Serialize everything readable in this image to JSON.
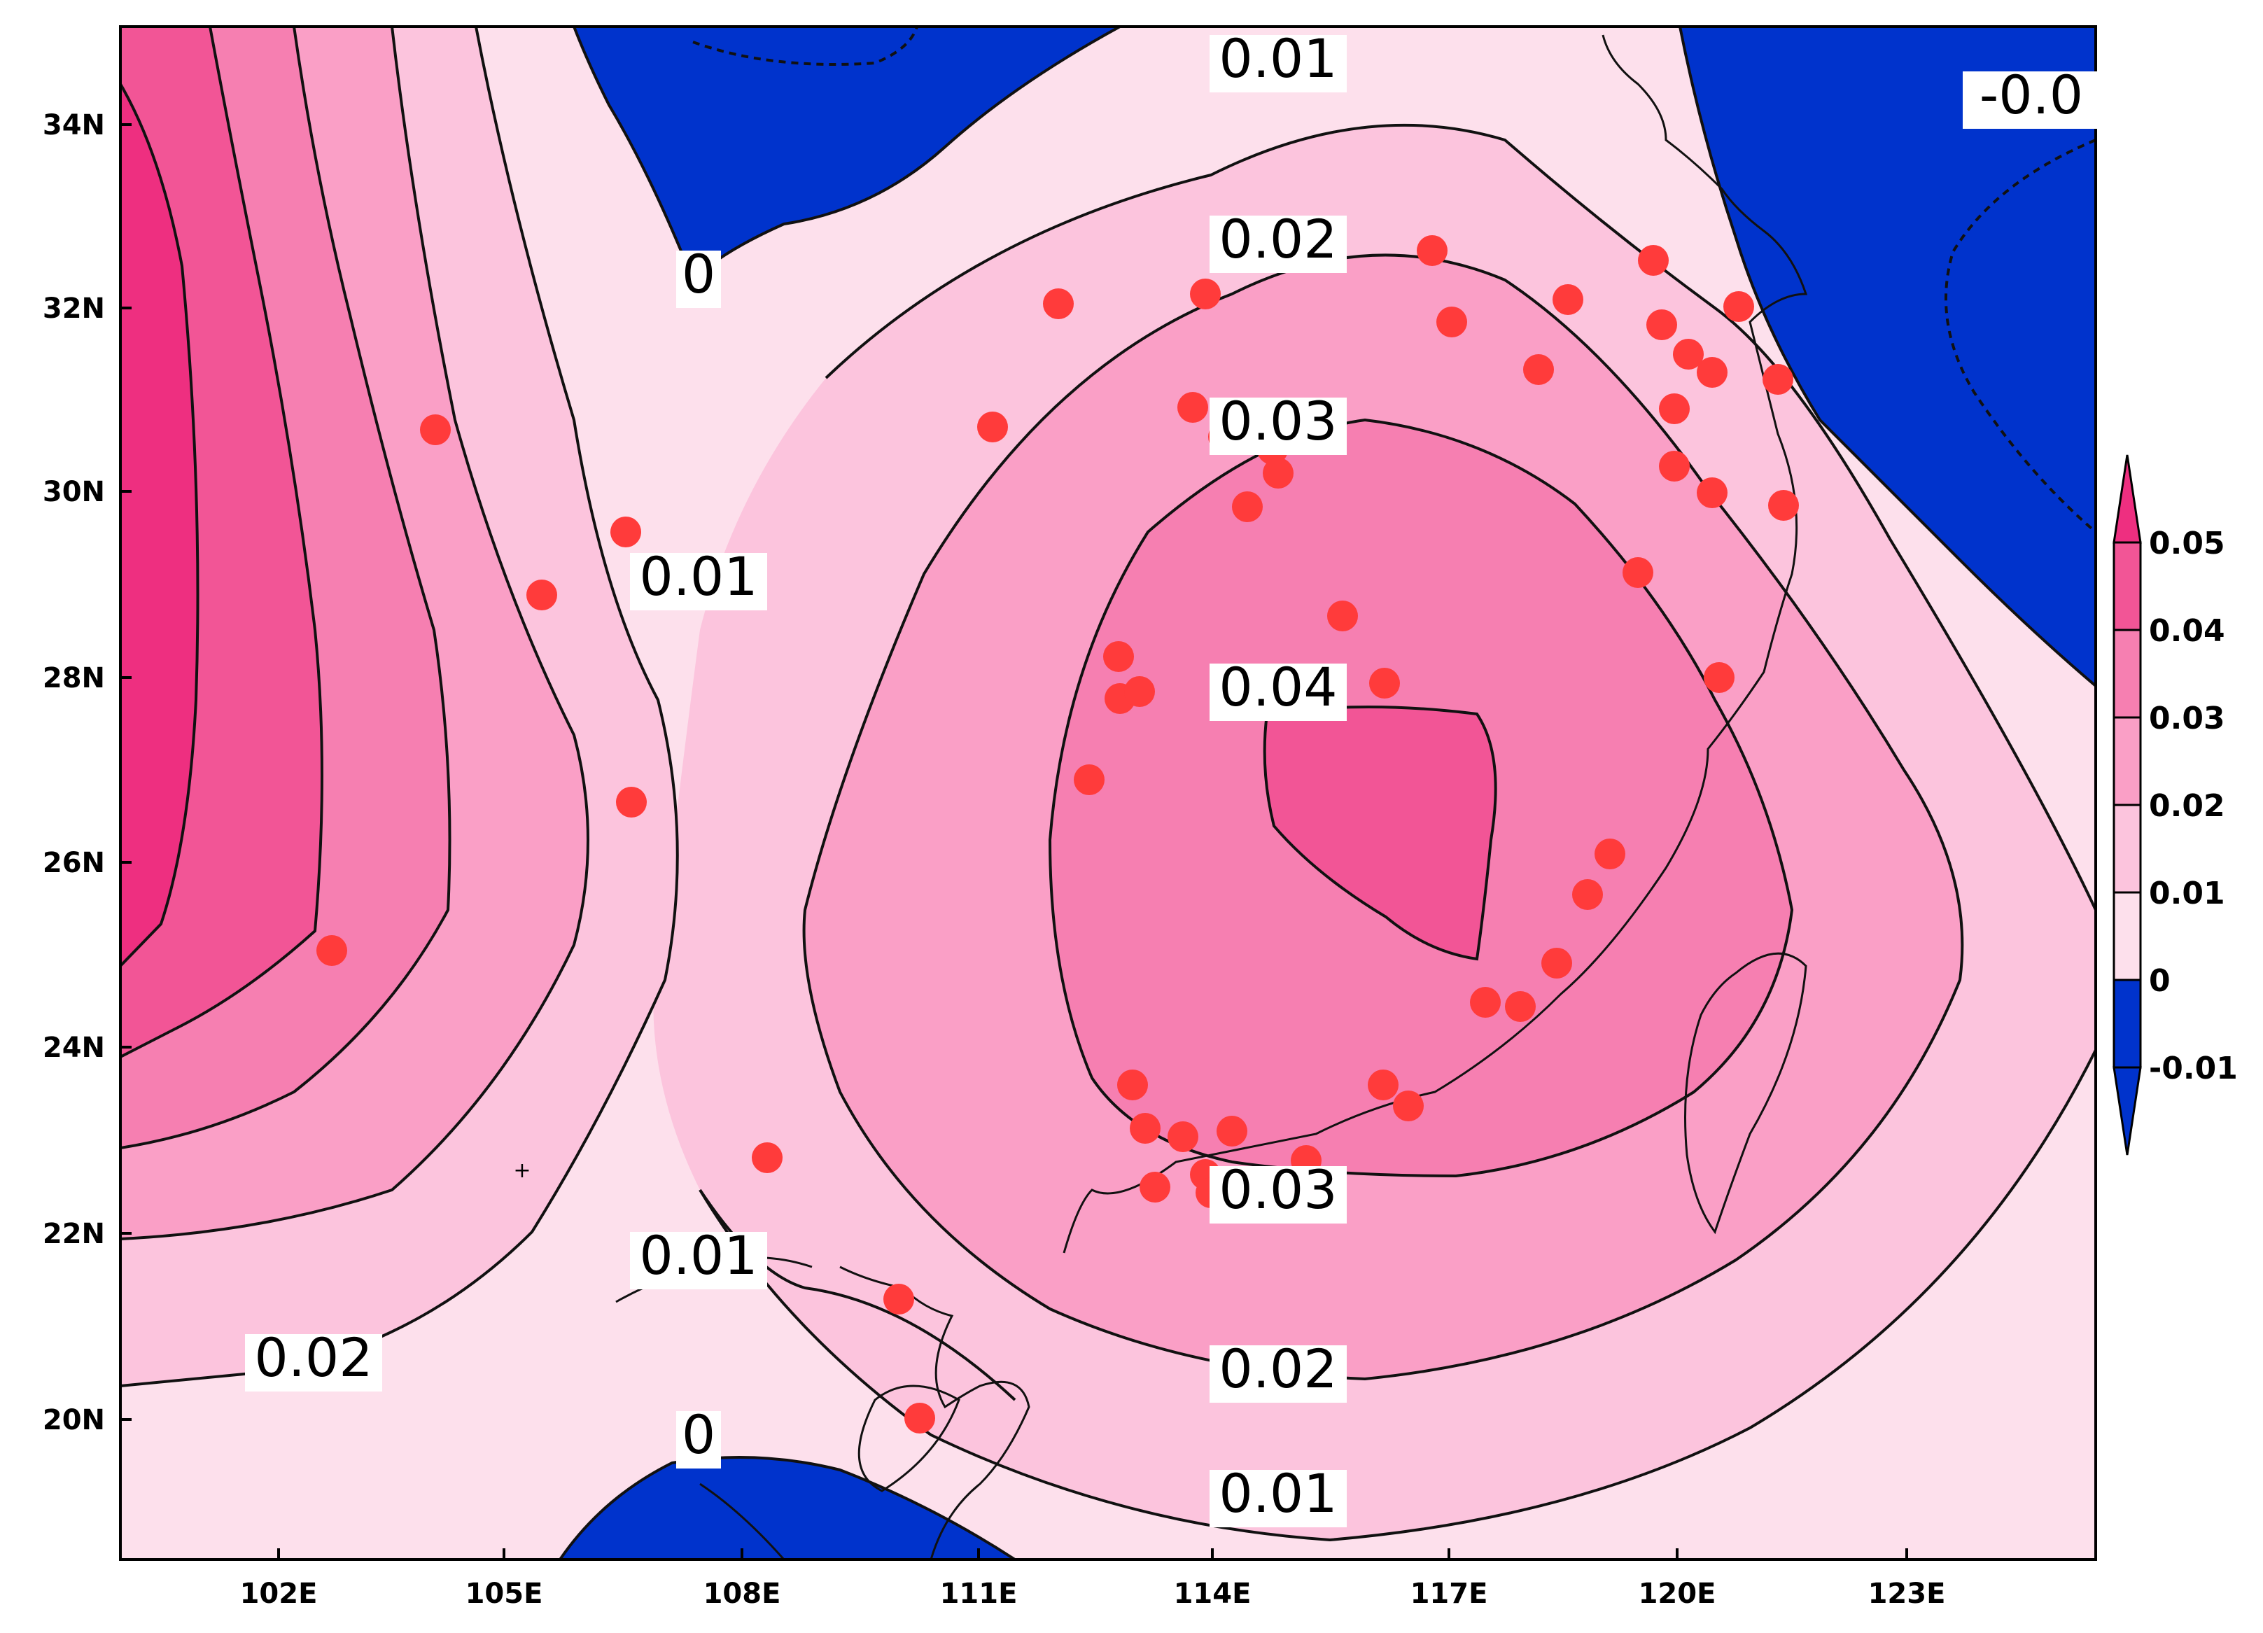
{
  "map": {
    "x_ticks": [
      "102E",
      "105E",
      "108E",
      "111E",
      "114E",
      "117E",
      "120E",
      "123E"
    ],
    "y_ticks": [
      "34N",
      "32N",
      "30N",
      "28N",
      "26N",
      "24N",
      "22N",
      "20N"
    ],
    "contour_labels": [
      "0.01",
      "0.02",
      "0.03",
      "0.04",
      "0.03",
      "0.02",
      "0.01",
      "0.01",
      "0.01",
      "0",
      "0",
      "0.02",
      "-0.0"
    ],
    "colorbar": {
      "labels": [
        "0.05",
        "0.04",
        "0.03",
        "0.02",
        "0.01",
        "0",
        "-0.01"
      ],
      "colors": [
        "#ee2f80",
        "#f25596",
        "#f67fb1",
        "#fa9fc6",
        "#fcc4dd",
        "#fde0ec",
        "#0033cc"
      ]
    },
    "colors": {
      "negative": "#0033cc",
      "level_0_001": "#fde0ec",
      "level_001_002": "#fcc4dd",
      "level_002_003": "#fa9fc6",
      "level_003_004": "#f67fb1",
      "level_004_005": "#f25596",
      "level_above_005": "#ee2f80",
      "station": "#ff3b3b"
    }
  }
}
